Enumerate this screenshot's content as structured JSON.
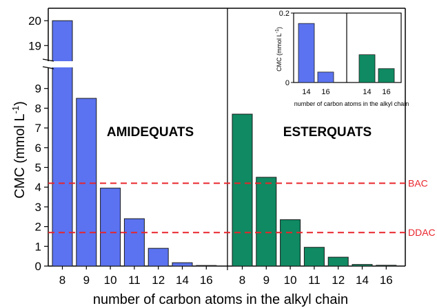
{
  "chart_data": {
    "type": "bar",
    "xlabel": "number of carbon atoms in the alkyl chain",
    "ylabel_main": "CMC (mmol L",
    "ylabel_sup": "-1",
    "ylabel_close": ")",
    "y_axis": {
      "lower_range": [
        0,
        10
      ],
      "lower_ticks": [
        "0",
        "1",
        "2",
        "3",
        "4",
        "5",
        "6",
        "7",
        "8",
        "9"
      ],
      "upper_range": [
        18.4,
        20.5
      ],
      "upper_ticks": [
        "19",
        "20"
      ],
      "break": true
    },
    "groups": [
      {
        "name": "AMIDEQUATS",
        "color": "#5b73f0",
        "categories": [
          "8",
          "9",
          "10",
          "11",
          "12",
          "14",
          "16"
        ],
        "values": [
          20.0,
          8.5,
          3.95,
          2.4,
          0.9,
          0.17,
          0.03
        ]
      },
      {
        "name": "ESTERQUATS",
        "color": "#0f8a62",
        "categories": [
          "8",
          "9",
          "10",
          "11",
          "12",
          "14",
          "16"
        ],
        "values": [
          7.7,
          4.5,
          2.35,
          0.95,
          0.45,
          0.08,
          0.04
        ]
      }
    ],
    "reference_lines": [
      {
        "name": "BAC",
        "value": 4.2,
        "color": "#e8242a"
      },
      {
        "name": "DDAC",
        "value": 1.7,
        "color": "#e8242a"
      }
    ],
    "inset": {
      "ylabel_main": "CMC (mmol L",
      "ylabel_sup": "-1",
      "ylabel_close": ")",
      "xlabel": "number of carbon atoms in the alkyl chain",
      "ylim": [
        0,
        0.2
      ],
      "y_ticks": [
        "0",
        "0.2"
      ],
      "groups": [
        {
          "name": "AMIDEQUATS",
          "color": "#5b73f0",
          "categories": [
            "14",
            "16"
          ],
          "values": [
            0.17,
            0.03
          ]
        },
        {
          "name": "ESTERQUATS",
          "color": "#0f8a62",
          "categories": [
            "14",
            "16"
          ],
          "values": [
            0.08,
            0.04
          ]
        }
      ]
    }
  }
}
